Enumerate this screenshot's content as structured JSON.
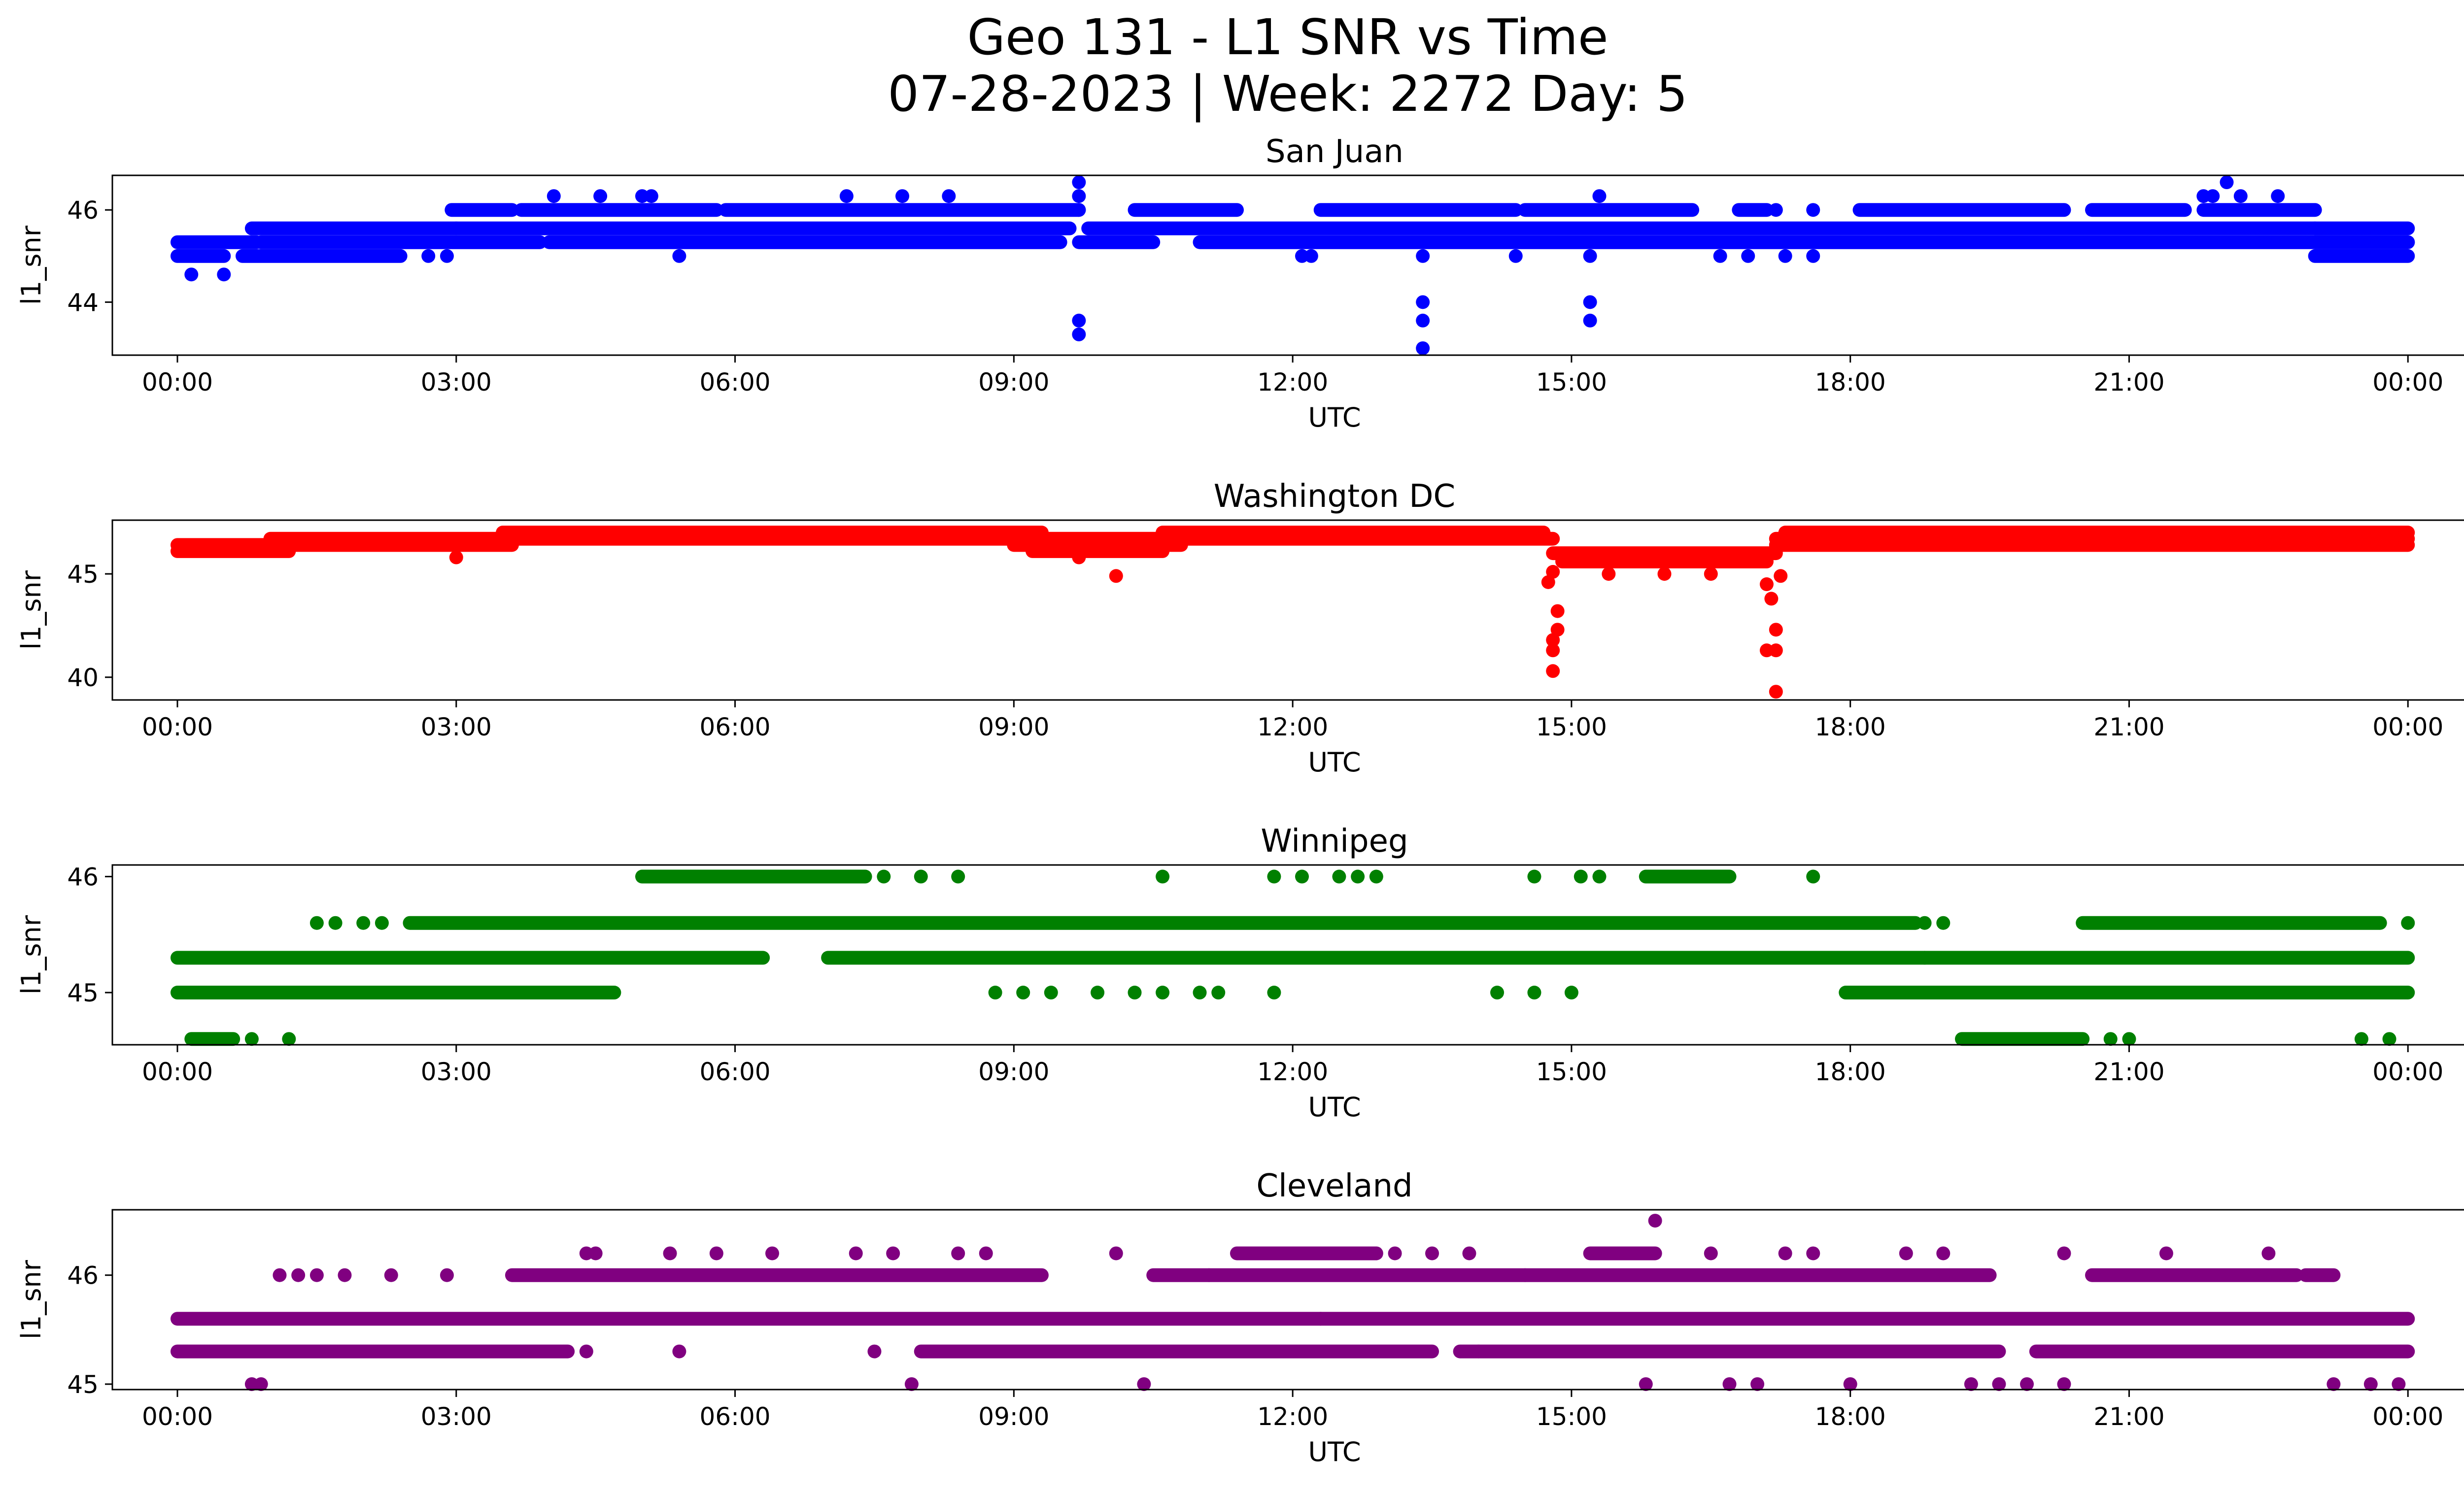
{
  "figure": {
    "title_line1": "Geo 131 - L1 SNR vs Time",
    "title_line2": "07-28-2023 | Week: 2272 Day: 5"
  },
  "chart_data": [
    {
      "type": "scatter",
      "title": "San Juan",
      "xlabel": "UTC",
      "ylabel": "l1_snr",
      "color": "#0000ff",
      "xlim": [
        -0.7,
        25.6
      ],
      "ylim": [
        42.85,
        46.75
      ],
      "x_ticks": [
        0,
        3,
        6,
        9,
        12,
        15,
        18,
        21,
        24
      ],
      "x_tick_labels": [
        "00:00",
        "03:00",
        "06:00",
        "09:00",
        "12:00",
        "15:00",
        "18:00",
        "21:00",
        "00:00"
      ],
      "y_ticks": [
        44,
        46
      ],
      "y_tick_labels": [
        "44",
        "46"
      ],
      "bands": [
        {
          "y": 45.3,
          "x": [
            [
              0,
              0.85
            ],
            [
              23.0,
              24.0
            ]
          ]
        },
        {
          "y": 45.0,
          "x": [
            [
              0,
              0.5
            ],
            [
              0.7,
              2.4
            ],
            [
              23.0,
              24.0
            ]
          ]
        },
        {
          "y": 45.6,
          "x": [
            [
              0.8,
              3.0
            ],
            [
              3.0,
              9.6
            ],
            [
              9.8,
              23.0
            ],
            [
              23.0,
              24.0
            ]
          ]
        },
        {
          "y": 45.3,
          "x": [
            [
              0.9,
              3.9
            ],
            [
              4.0,
              9.5
            ],
            [
              9.7,
              10.5
            ],
            [
              11.0,
              24.0
            ]
          ]
        },
        {
          "y": 46.0,
          "x": [
            [
              2.95,
              3.6
            ],
            [
              3.7,
              5.8
            ],
            [
              5.9,
              9.7
            ],
            [
              10.3,
              11.4
            ],
            [
              12.3,
              14.4
            ],
            [
              14.5,
              16.3
            ],
            [
              16.8,
              17.1
            ],
            [
              18.1,
              20.3
            ],
            [
              20.6,
              21.6
            ],
            [
              21.8,
              23.0
            ]
          ]
        }
      ],
      "outliers": [
        {
          "x": 0.15,
          "y": 44.6
        },
        {
          "x": 0.5,
          "y": 44.6
        },
        {
          "x": 2.7,
          "y": 45.0
        },
        {
          "x": 2.9,
          "y": 45.0
        },
        {
          "x": 4.05,
          "y": 46.3
        },
        {
          "x": 4.55,
          "y": 46.3
        },
        {
          "x": 5.0,
          "y": 46.3
        },
        {
          "x": 5.1,
          "y": 46.3
        },
        {
          "x": 5.4,
          "y": 45.0
        },
        {
          "x": 7.2,
          "y": 46.3
        },
        {
          "x": 7.8,
          "y": 46.3
        },
        {
          "x": 8.3,
          "y": 46.3
        },
        {
          "x": 9.7,
          "y": 46.6
        },
        {
          "x": 9.7,
          "y": 46.3
        },
        {
          "x": 9.7,
          "y": 46.0
        },
        {
          "x": 9.7,
          "y": 43.6
        },
        {
          "x": 9.7,
          "y": 43.3
        },
        {
          "x": 12.1,
          "y": 45.0
        },
        {
          "x": 12.2,
          "y": 45.0
        },
        {
          "x": 13.4,
          "y": 45.0
        },
        {
          "x": 13.4,
          "y": 44.0
        },
        {
          "x": 13.4,
          "y": 43.6
        },
        {
          "x": 13.4,
          "y": 43.0
        },
        {
          "x": 14.4,
          "y": 45.0
        },
        {
          "x": 15.2,
          "y": 45.0
        },
        {
          "x": 15.2,
          "y": 44.0
        },
        {
          "x": 15.2,
          "y": 43.6
        },
        {
          "x": 15.3,
          "y": 46.3
        },
        {
          "x": 16.6,
          "y": 45.0
        },
        {
          "x": 16.9,
          "y": 45.0
        },
        {
          "x": 17.3,
          "y": 45.0
        },
        {
          "x": 17.6,
          "y": 45.0
        },
        {
          "x": 17.2,
          "y": 46.0
        },
        {
          "x": 17.6,
          "y": 46.0
        },
        {
          "x": 21.8,
          "y": 46.3
        },
        {
          "x": 21.9,
          "y": 46.3
        },
        {
          "x": 22.05,
          "y": 46.6
        },
        {
          "x": 22.2,
          "y": 46.3
        },
        {
          "x": 22.6,
          "y": 46.3
        }
      ]
    },
    {
      "type": "scatter",
      "title": "Washington DC",
      "xlabel": "UTC",
      "ylabel": "l1_snr",
      "color": "#ff0000",
      "xlim": [
        -0.7,
        25.6
      ],
      "ylim": [
        38.9,
        47.6
      ],
      "x_ticks": [
        0,
        3,
        6,
        9,
        12,
        15,
        18,
        21,
        24
      ],
      "x_tick_labels": [
        "00:00",
        "03:00",
        "06:00",
        "09:00",
        "12:00",
        "15:00",
        "18:00",
        "21:00",
        "00:00"
      ],
      "y_ticks": [
        40,
        45
      ],
      "y_tick_labels": [
        "40",
        "45"
      ],
      "bands": [
        {
          "y": 46.1,
          "x": [
            [
              0,
              1.2
            ],
            [
              9.2,
              10.6
            ]
          ]
        },
        {
          "y": 46.4,
          "x": [
            [
              0,
              3.6
            ],
            [
              9.0,
              10.8
            ],
            [
              17.2,
              24.0
            ]
          ]
        },
        {
          "y": 46.7,
          "x": [
            [
              1.0,
              14.8
            ],
            [
              17.2,
              24.0
            ]
          ]
        },
        {
          "y": 47.0,
          "x": [
            [
              3.5,
              9.3
            ],
            [
              10.6,
              14.7
            ],
            [
              17.3,
              24.0
            ]
          ]
        },
        {
          "y": 46.0,
          "x": [
            [
              14.8,
              17.2
            ]
          ]
        },
        {
          "y": 45.6,
          "x": [
            [
              14.9,
              17.1
            ]
          ]
        }
      ],
      "outliers": [
        {
          "x": 3.0,
          "y": 45.8
        },
        {
          "x": 9.7,
          "y": 45.8
        },
        {
          "x": 10.1,
          "y": 44.9
        },
        {
          "x": 14.75,
          "y": 44.6
        },
        {
          "x": 14.8,
          "y": 45.1
        },
        {
          "x": 14.85,
          "y": 43.2
        },
        {
          "x": 14.85,
          "y": 42.3
        },
        {
          "x": 14.8,
          "y": 41.8
        },
        {
          "x": 14.8,
          "y": 41.3
        },
        {
          "x": 14.8,
          "y": 40.3
        },
        {
          "x": 15.4,
          "y": 45.0
        },
        {
          "x": 16.0,
          "y": 45.0
        },
        {
          "x": 16.5,
          "y": 45.0
        },
        {
          "x": 17.1,
          "y": 44.5
        },
        {
          "x": 17.15,
          "y": 43.8
        },
        {
          "x": 17.1,
          "y": 41.3
        },
        {
          "x": 17.2,
          "y": 42.3
        },
        {
          "x": 17.2,
          "y": 41.3
        },
        {
          "x": 17.2,
          "y": 39.3
        },
        {
          "x": 17.25,
          "y": 44.9
        }
      ]
    },
    {
      "type": "scatter",
      "title": "Winnipeg",
      "xlabel": "UTC",
      "ylabel": "l1_snr",
      "color": "#008000",
      "xlim": [
        -0.7,
        25.6
      ],
      "ylim": [
        44.55,
        46.1
      ],
      "x_ticks": [
        0,
        3,
        6,
        9,
        12,
        15,
        18,
        21,
        24
      ],
      "x_tick_labels": [
        "00:00",
        "03:00",
        "06:00",
        "09:00",
        "12:00",
        "15:00",
        "18:00",
        "21:00",
        "00:00"
      ],
      "y_ticks": [
        45,
        46
      ],
      "y_tick_labels": [
        "45",
        "46"
      ],
      "bands": [
        {
          "y": 44.6,
          "x": [
            [
              0.15,
              0.6
            ],
            [
              19.2,
              20.5
            ]
          ]
        },
        {
          "y": 45.0,
          "x": [
            [
              0,
              4.7
            ],
            [
              17.95,
              24.0
            ]
          ]
        },
        {
          "y": 45.3,
          "x": [
            [
              0,
              6.3
            ],
            [
              7.0,
              24.0
            ]
          ]
        },
        {
          "y": 45.6,
          "x": [
            [
              2.5,
              18.7
            ],
            [
              20.5,
              23.7
            ]
          ]
        },
        {
          "y": 46.0,
          "x": [
            [
              5.0,
              7.4
            ],
            [
              15.8,
              16.7
            ]
          ]
        }
      ],
      "outliers": [
        {
          "x": 0.8,
          "y": 44.6
        },
        {
          "x": 1.2,
          "y": 44.6
        },
        {
          "x": 1.5,
          "y": 45.6
        },
        {
          "x": 1.7,
          "y": 45.6
        },
        {
          "x": 2.0,
          "y": 45.6
        },
        {
          "x": 2.2,
          "y": 45.6
        },
        {
          "x": 8.8,
          "y": 45.0
        },
        {
          "x": 9.1,
          "y": 45.0
        },
        {
          "x": 9.4,
          "y": 45.0
        },
        {
          "x": 9.9,
          "y": 45.0
        },
        {
          "x": 10.3,
          "y": 45.0
        },
        {
          "x": 10.6,
          "y": 45.0
        },
        {
          "x": 11.0,
          "y": 45.0
        },
        {
          "x": 11.2,
          "y": 45.0
        },
        {
          "x": 11.8,
          "y": 45.0
        },
        {
          "x": 14.2,
          "y": 45.0
        },
        {
          "x": 14.6,
          "y": 45.0
        },
        {
          "x": 15.0,
          "y": 45.0
        },
        {
          "x": 7.6,
          "y": 46.0
        },
        {
          "x": 8.0,
          "y": 46.0
        },
        {
          "x": 8.4,
          "y": 46.0
        },
        {
          "x": 10.6,
          "y": 46.0
        },
        {
          "x": 11.8,
          "y": 46.0
        },
        {
          "x": 12.1,
          "y": 46.0
        },
        {
          "x": 12.5,
          "y": 46.0
        },
        {
          "x": 12.7,
          "y": 46.0
        },
        {
          "x": 12.9,
          "y": 46.0
        },
        {
          "x": 14.6,
          "y": 46.0
        },
        {
          "x": 15.1,
          "y": 46.0
        },
        {
          "x": 15.3,
          "y": 46.0
        },
        {
          "x": 17.6,
          "y": 46.0
        },
        {
          "x": 18.8,
          "y": 45.6
        },
        {
          "x": 19.0,
          "y": 45.6
        },
        {
          "x": 20.8,
          "y": 44.6
        },
        {
          "x": 21.0,
          "y": 44.6
        },
        {
          "x": 23.5,
          "y": 44.6
        },
        {
          "x": 23.8,
          "y": 44.6
        },
        {
          "x": 24.0,
          "y": 45.6
        },
        {
          "x": 18.8,
          "y": 45.3
        }
      ]
    },
    {
      "type": "scatter",
      "title": "Cleveland",
      "xlabel": "UTC",
      "ylabel": "l1_snr",
      "color": "#800080",
      "xlim": [
        -0.7,
        25.6
      ],
      "ylim": [
        44.95,
        46.6
      ],
      "x_ticks": [
        0,
        3,
        6,
        9,
        12,
        15,
        18,
        21,
        24
      ],
      "x_tick_labels": [
        "00:00",
        "03:00",
        "06:00",
        "09:00",
        "12:00",
        "15:00",
        "18:00",
        "21:00",
        "00:00"
      ],
      "y_ticks": [
        45,
        46
      ],
      "y_tick_labels": [
        "45",
        "46"
      ],
      "bands": [
        {
          "y": 45.3,
          "x": [
            [
              0,
              4.2
            ],
            [
              8.0,
              13.5
            ],
            [
              13.8,
              19.6
            ],
            [
              20.0,
              24.0
            ]
          ]
        },
        {
          "y": 45.6,
          "x": [
            [
              0,
              12.3
            ],
            [
              12.3,
              24.0
            ]
          ]
        },
        {
          "y": 46.0,
          "x": [
            [
              3.6,
              9.3
            ],
            [
              10.5,
              19.5
            ],
            [
              20.6,
              22.8
            ],
            [
              22.9,
              23.2
            ]
          ]
        },
        {
          "y": 46.2,
          "x": [
            [
              11.4,
              12.9
            ],
            [
              15.2,
              15.9
            ]
          ]
        }
      ],
      "outliers": [
        {
          "x": 0.8,
          "y": 45.0
        },
        {
          "x": 0.9,
          "y": 45.0
        },
        {
          "x": 1.1,
          "y": 46.0
        },
        {
          "x": 1.3,
          "y": 46.0
        },
        {
          "x": 1.5,
          "y": 46.0
        },
        {
          "x": 1.8,
          "y": 46.0
        },
        {
          "x": 2.3,
          "y": 46.0
        },
        {
          "x": 2.9,
          "y": 46.0
        },
        {
          "x": 4.4,
          "y": 46.2
        },
        {
          "x": 4.5,
          "y": 46.2
        },
        {
          "x": 4.4,
          "y": 45.3
        },
        {
          "x": 5.3,
          "y": 46.2
        },
        {
          "x": 5.8,
          "y": 46.2
        },
        {
          "x": 6.4,
          "y": 46.2
        },
        {
          "x": 5.4,
          "y": 45.3
        },
        {
          "x": 7.3,
          "y": 46.2
        },
        {
          "x": 7.7,
          "y": 46.2
        },
        {
          "x": 7.5,
          "y": 45.3
        },
        {
          "x": 7.9,
          "y": 45.0
        },
        {
          "x": 8.4,
          "y": 46.2
        },
        {
          "x": 8.7,
          "y": 46.2
        },
        {
          "x": 10.1,
          "y": 46.2
        },
        {
          "x": 10.4,
          "y": 45.0
        },
        {
          "x": 11.1,
          "y": 46.0
        },
        {
          "x": 13.1,
          "y": 46.2
        },
        {
          "x": 13.5,
          "y": 46.2
        },
        {
          "x": 13.9,
          "y": 46.2
        },
        {
          "x": 14.5,
          "y": 46.0
        },
        {
          "x": 14.0,
          "y": 45.3
        },
        {
          "x": 15.9,
          "y": 46.5
        },
        {
          "x": 15.8,
          "y": 45.0
        },
        {
          "x": 16.5,
          "y": 46.2
        },
        {
          "x": 16.7,
          "y": 45.0
        },
        {
          "x": 17.0,
          "y": 45.0
        },
        {
          "x": 17.3,
          "y": 46.2
        },
        {
          "x": 17.6,
          "y": 46.2
        },
        {
          "x": 18.0,
          "y": 45.0
        },
        {
          "x": 18.6,
          "y": 46.2
        },
        {
          "x": 19.0,
          "y": 46.2
        },
        {
          "x": 19.3,
          "y": 45.0
        },
        {
          "x": 19.6,
          "y": 45.0
        },
        {
          "x": 19.9,
          "y": 45.0
        },
        {
          "x": 20.3,
          "y": 45.0
        },
        {
          "x": 20.3,
          "y": 46.2
        },
        {
          "x": 21.4,
          "y": 46.2
        },
        {
          "x": 22.5,
          "y": 46.2
        },
        {
          "x": 23.2,
          "y": 45.0
        },
        {
          "x": 23.6,
          "y": 45.0
        },
        {
          "x": 23.9,
          "y": 45.0
        }
      ]
    }
  ]
}
